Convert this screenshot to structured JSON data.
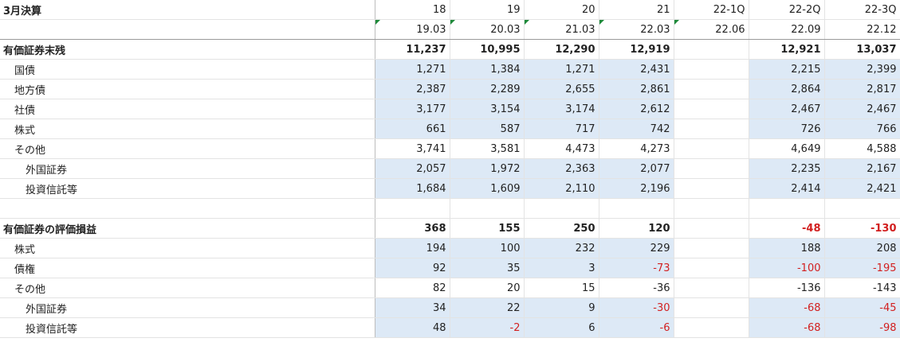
{
  "header": {
    "title": "3月決算",
    "periods": [
      "18",
      "19",
      "20",
      "21",
      "22-1Q",
      "22-2Q",
      "22-3Q"
    ],
    "dates": [
      "19.03",
      "20.03",
      "21.03",
      "22.03",
      "22.06",
      "22.09",
      "22.12"
    ]
  },
  "rows": [
    {
      "label": "有価証券末残",
      "values": [
        "11,237",
        "10,995",
        "12,290",
        "12,919",
        "",
        "12,921",
        "13,037"
      ]
    },
    {
      "label": "国債",
      "values": [
        "1,271",
        "1,384",
        "1,271",
        "2,431",
        "",
        "2,215",
        "2,399"
      ]
    },
    {
      "label": "地方債",
      "values": [
        "2,387",
        "2,289",
        "2,655",
        "2,861",
        "",
        "2,864",
        "2,817"
      ]
    },
    {
      "label": "社債",
      "values": [
        "3,177",
        "3,154",
        "3,174",
        "2,612",
        "",
        "2,467",
        "2,467"
      ]
    },
    {
      "label": "株式",
      "values": [
        "661",
        "587",
        "717",
        "742",
        "",
        "726",
        "766"
      ]
    },
    {
      "label": "その他",
      "values": [
        "3,741",
        "3,581",
        "4,473",
        "4,273",
        "",
        "4,649",
        "4,588"
      ]
    },
    {
      "label": "外国証券",
      "values": [
        "2,057",
        "1,972",
        "2,363",
        "2,077",
        "",
        "2,235",
        "2,167"
      ]
    },
    {
      "label": "投資信託等",
      "values": [
        "1,684",
        "1,609",
        "2,110",
        "2,196",
        "",
        "2,414",
        "2,421"
      ]
    },
    {
      "label": "",
      "values": [
        "",
        "",
        "",
        "",
        "",
        "",
        ""
      ]
    },
    {
      "label": "有価証券の評価損益",
      "values": [
        "368",
        "155",
        "250",
        "120",
        "",
        "-48",
        "-130"
      ]
    },
    {
      "label": "株式",
      "values": [
        "194",
        "100",
        "232",
        "229",
        "",
        "188",
        "208"
      ]
    },
    {
      "label": "債権",
      "values": [
        "92",
        "35",
        "3",
        "-73",
        "",
        "-100",
        "-195"
      ]
    },
    {
      "label": "その他",
      "values": [
        "82",
        "20",
        "15",
        "-36",
        "",
        "-136",
        "-143"
      ]
    },
    {
      "label": "外国証券",
      "values": [
        "34",
        "22",
        "9",
        "-30",
        "",
        "-68",
        "-45"
      ]
    },
    {
      "label": "投資信託等",
      "values": [
        "48",
        "-2",
        "6",
        "-6",
        "",
        "-68",
        "-98"
      ]
    }
  ],
  "colors": {
    "shade": "#dde9f6",
    "negative": "#d21f1f",
    "marker": "#1e8a3a"
  }
}
